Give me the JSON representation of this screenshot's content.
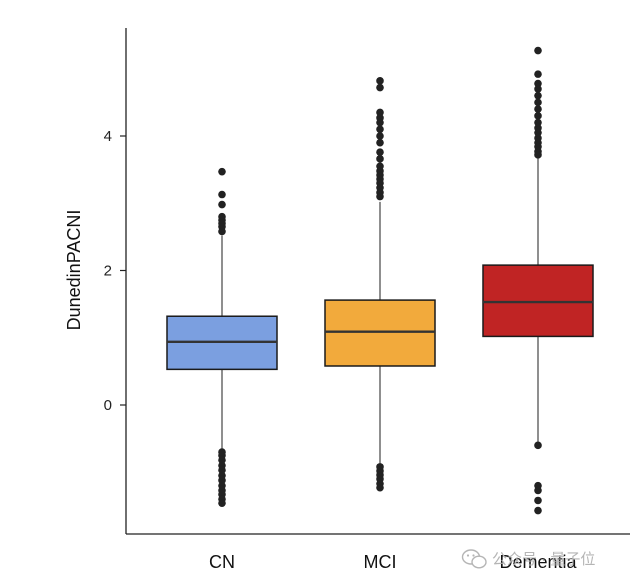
{
  "chart_data": {
    "type": "box",
    "ylabel": "DunedinPACNI",
    "xlabel": "",
    "categories": [
      "CN",
      "MCI",
      "Dementia"
    ],
    "yticks": [
      0,
      2,
      4
    ],
    "ylim": [
      -1.9,
      5.6
    ],
    "grid": false,
    "boxes": [
      {
        "name": "CN",
        "color": "#7b9fe0",
        "q1": 0.53,
        "median": 0.94,
        "q3": 1.32,
        "whisker_low": -0.65,
        "whisker_high": 2.52,
        "outliers": [
          3.47,
          3.13,
          2.98,
          2.8,
          2.75,
          2.7,
          2.65,
          2.58,
          -0.7,
          -0.75,
          -0.82,
          -0.9,
          -0.97,
          -1.05,
          -1.12,
          -1.2,
          -1.27,
          -1.33,
          -1.4,
          -1.46
        ]
      },
      {
        "name": "MCI",
        "color": "#f2aa3c",
        "q1": 0.58,
        "median": 1.09,
        "q3": 1.56,
        "whisker_low": -0.88,
        "whisker_high": 3.02,
        "outliers": [
          4.82,
          4.72,
          4.35,
          4.27,
          4.2,
          4.1,
          4.0,
          3.9,
          3.76,
          3.66,
          3.55,
          3.48,
          3.42,
          3.36,
          3.3,
          3.23,
          3.16,
          3.1,
          -0.92,
          -0.98,
          -1.04,
          -1.1,
          -1.17,
          -1.23
        ]
      },
      {
        "name": "Dementia",
        "color": "#c02424",
        "q1": 1.02,
        "median": 1.53,
        "q3": 2.08,
        "whisker_low": -0.55,
        "whisker_high": 3.68,
        "outliers": [
          5.27,
          4.92,
          4.78,
          4.7,
          4.6,
          4.5,
          4.4,
          4.3,
          4.2,
          4.12,
          4.05,
          3.97,
          3.9,
          3.84,
          3.77,
          3.72,
          -0.6,
          -1.2,
          -1.27,
          -1.42,
          -1.57
        ]
      }
    ]
  },
  "watermark": {
    "text": "公众号 · 量子位",
    "icon": "wechat-icon"
  }
}
